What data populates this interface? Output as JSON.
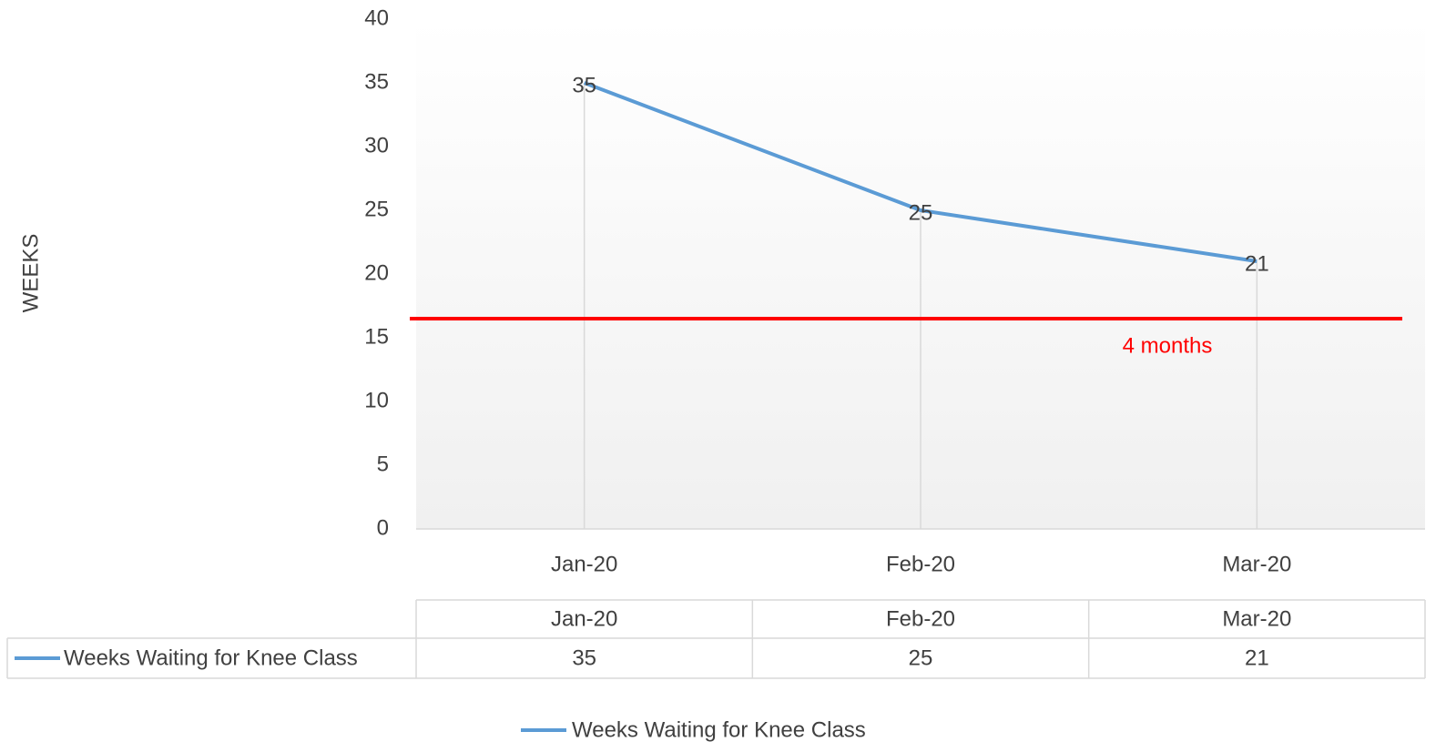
{
  "chart_data": {
    "type": "line",
    "y_label": "WEEKS",
    "categories": [
      "Jan-20",
      "Feb-20",
      "Mar-20"
    ],
    "series": [
      {
        "name": "Weeks Waiting for Knee Class",
        "color": "#5b9bd5",
        "values": [
          35,
          25,
          21
        ]
      }
    ],
    "ylim": [
      0,
      40
    ],
    "yticks": [
      0,
      5,
      10,
      15,
      20,
      25,
      30,
      35,
      40
    ],
    "reference_line": {
      "value": 16.5,
      "label": "4 months",
      "color": "#ff0000"
    },
    "data_table": true,
    "legend": "bottom",
    "grid": false,
    "drop_lines": true
  }
}
